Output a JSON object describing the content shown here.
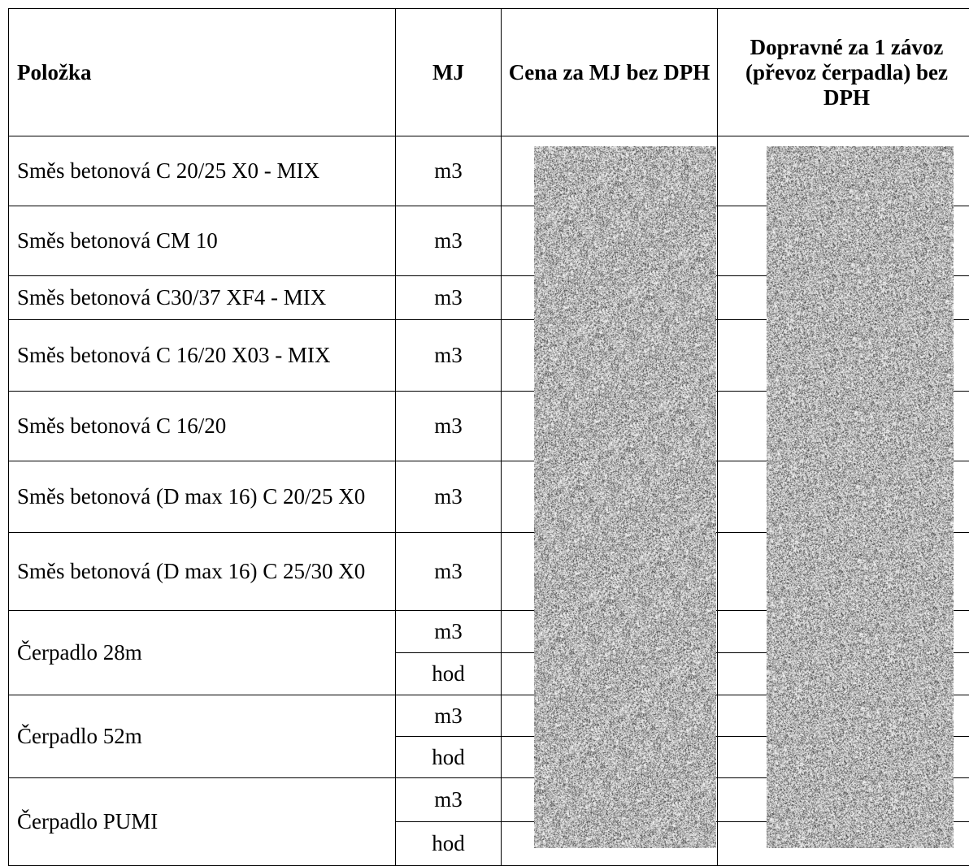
{
  "table": {
    "headers": {
      "item": "Položka",
      "unit": "MJ",
      "price": "Cena za MJ bez DPH",
      "transport": "Dopravné za 1 závoz (převoz čerpadla) bez DPH"
    },
    "rows": [
      {
        "item": "Směs betonová C 20/25 X0 - MIX",
        "unit": "m3"
      },
      {
        "item": "Směs betonová CM 10",
        "unit": "m3"
      },
      {
        "item": "Směs betonová C30/37 XF4 - MIX",
        "unit": "m3"
      },
      {
        "item": "Směs betonová C 16/20 X03 - MIX",
        "unit": "m3"
      },
      {
        "item": "Směs betonová C 16/20",
        "unit": "m3"
      },
      {
        "item": "Směs betonová (D max 16) C 20/25 X0",
        "unit": "m3"
      },
      {
        "item": "Směs betonová (D max 16) C 25/30 X0",
        "unit": "m3"
      }
    ],
    "pumps": [
      {
        "item": "Čerpadlo 28m",
        "units": [
          "m3",
          "hod"
        ]
      },
      {
        "item": "Čerpadlo 52m",
        "units": [
          "m3",
          "hod"
        ]
      },
      {
        "item": "Čerpadlo PUMI",
        "units": [
          "m3",
          "hod"
        ]
      }
    ]
  },
  "colors": {
    "noise_dark": "#2a2a2a",
    "noise_light": "#ffffff"
  }
}
